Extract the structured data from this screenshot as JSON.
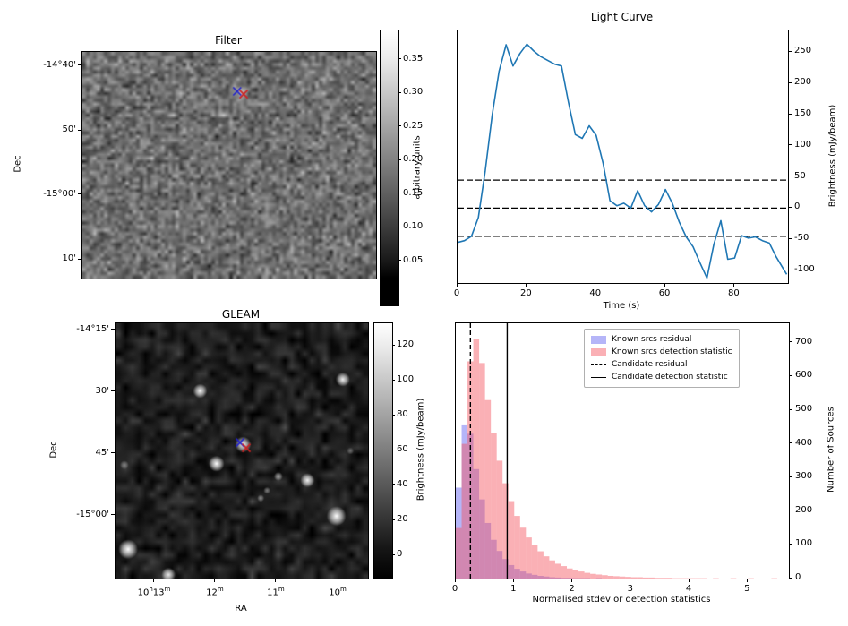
{
  "chart_data": [
    {
      "type": "heatmap",
      "title": "Filter",
      "ylabel": "Dec",
      "ytick_labels": [
        "-14°40'",
        "50'",
        "-15°00'",
        "10'"
      ],
      "colorbar": {
        "label": "arbitrary units",
        "tick_labels": [
          "0.35",
          "0.30",
          "0.25",
          "0.20",
          "0.15",
          "0.10",
          "0.05"
        ]
      },
      "markers": [
        {
          "shape": "x",
          "x": 0.527,
          "y": 0.174,
          "color": "#2222cc"
        },
        {
          "shape": "x",
          "x": 0.549,
          "y": 0.186,
          "color": "#cc2222"
        }
      ]
    },
    {
      "type": "line",
      "title": "Light Curve",
      "xlabel": "Time (s)",
      "ylabel": "Brightness (mJy/beam)",
      "xlim": [
        0,
        95.4
      ],
      "ylim": [
        -120,
        285
      ],
      "xticks": [
        0,
        20,
        40,
        60,
        80
      ],
      "yticks": [
        -100,
        -50,
        0,
        50,
        100,
        150,
        200,
        250
      ],
      "line_color": "#1f77b4",
      "dashed_hlines": [
        45,
        0,
        -45
      ],
      "x": [
        0,
        2,
        4,
        6,
        8,
        10,
        12,
        14,
        16,
        18,
        20,
        22,
        24,
        26,
        28,
        30,
        32,
        34,
        36,
        38,
        40,
        42,
        44,
        46,
        48,
        50,
        52,
        54,
        56,
        58,
        60,
        62,
        64,
        66,
        68,
        70,
        72,
        74,
        76,
        78,
        80,
        82,
        84,
        86,
        88,
        90,
        92,
        95
      ],
      "y": [
        -55,
        -52,
        -45,
        -15,
        60,
        150,
        220,
        262,
        228,
        248,
        263,
        252,
        243,
        237,
        231,
        228,
        170,
        118,
        112,
        132,
        117,
        72,
        12,
        4,
        8,
        0,
        28,
        4,
        -6,
        6,
        30,
        8,
        -22,
        -46,
        -62,
        -88,
        -112,
        -58,
        -20,
        -82,
        -80,
        -44,
        -48,
        -46,
        -52,
        -56,
        -78,
        -106
      ]
    },
    {
      "type": "heatmap",
      "title": "GLEAM",
      "xlabel": "RA",
      "ylabel": "Dec",
      "xtick_labels": [
        "10h13m",
        "12m",
        "11m",
        "10m"
      ],
      "ytick_labels": [
        "-14°15'",
        "30'",
        "45'",
        "-15°00'"
      ],
      "colorbar": {
        "label": "Brightness (mJy/beam)",
        "tick_labels": [
          "120",
          "100",
          "80",
          "60",
          "40",
          "20",
          "0"
        ]
      },
      "sources": [
        {
          "x": 0.505,
          "y": 0.475,
          "r": 9,
          "a": 1.0
        },
        {
          "x": 0.4,
          "y": 0.55,
          "r": 9,
          "a": 1.0
        },
        {
          "x": 0.335,
          "y": 0.265,
          "r": 8,
          "a": 0.95
        },
        {
          "x": 0.9,
          "y": 0.22,
          "r": 8,
          "a": 0.95
        },
        {
          "x": 0.875,
          "y": 0.755,
          "r": 11,
          "a": 1.0
        },
        {
          "x": 0.76,
          "y": 0.615,
          "r": 8,
          "a": 0.95
        },
        {
          "x": 0.645,
          "y": 0.6,
          "r": 5,
          "a": 0.6
        },
        {
          "x": 0.575,
          "y": 0.685,
          "r": 4,
          "a": 0.5
        },
        {
          "x": 0.6,
          "y": 0.655,
          "r": 4,
          "a": 0.45
        },
        {
          "x": 0.05,
          "y": 0.885,
          "r": 11,
          "a": 1.0
        },
        {
          "x": 0.21,
          "y": 0.985,
          "r": 8,
          "a": 0.9
        },
        {
          "x": 0.035,
          "y": 0.555,
          "r": 5,
          "a": 0.4
        },
        {
          "x": 0.93,
          "y": 0.5,
          "r": 4,
          "a": 0.35
        }
      ],
      "markers": [
        {
          "shape": "x",
          "x": 0.493,
          "y": 0.467,
          "color": "#2222cc"
        },
        {
          "shape": "x",
          "x": 0.518,
          "y": 0.488,
          "color": "#cc2222"
        }
      ]
    },
    {
      "type": "bar",
      "xlabel": "Normalised stdev or detection statistics",
      "ylabel": "Number of Sources",
      "xlim": [
        0,
        5.7
      ],
      "ylim": [
        0,
        758
      ],
      "xticks": [
        0,
        1,
        2,
        3,
        4,
        5
      ],
      "yticks": [
        0,
        100,
        200,
        300,
        400,
        500,
        600,
        700
      ],
      "bin_width": 0.1,
      "series": [
        {
          "name": "Known srcs residual",
          "color": "rgba(90,90,240,0.45)",
          "values": [
            270,
            455,
            430,
            325,
            235,
            165,
            115,
            82,
            58,
            40,
            29,
            21,
            15,
            11,
            8,
            6,
            4,
            3,
            2,
            2,
            1,
            1,
            1,
            0,
            1,
            0,
            0,
            0,
            0,
            0,
            0,
            0,
            0,
            0,
            0,
            0,
            0,
            0,
            0,
            0,
            0,
            0,
            0,
            0,
            0,
            0,
            0,
            0,
            0,
            0,
            0,
            0,
            0,
            0,
            0
          ]
        },
        {
          "name": "Known srcs detection statistic",
          "color": "rgba(245,80,90,0.45)",
          "values": [
            150,
            400,
            645,
            712,
            640,
            530,
            432,
            350,
            283,
            230,
            186,
            151,
            122,
            99,
            81,
            66,
            54,
            44,
            37,
            30,
            25,
            21,
            17,
            14,
            12,
            10,
            8,
            7,
            6,
            5,
            4,
            4,
            3,
            3,
            2,
            2,
            2,
            1,
            1,
            1,
            1,
            1,
            1,
            0,
            1,
            0,
            0,
            1,
            0,
            0,
            1,
            0,
            0,
            0,
            1
          ]
        }
      ],
      "vlines": [
        {
          "name": "Candidate residual",
          "style": "dashed",
          "x": 0.25
        },
        {
          "name": "Candidate detection statistic",
          "style": "solid",
          "x": 0.88
        }
      ],
      "legend": [
        "Known srcs residual",
        "Known srcs detection statistic",
        "Candidate residual",
        "Candidate detection statistic"
      ]
    }
  ]
}
